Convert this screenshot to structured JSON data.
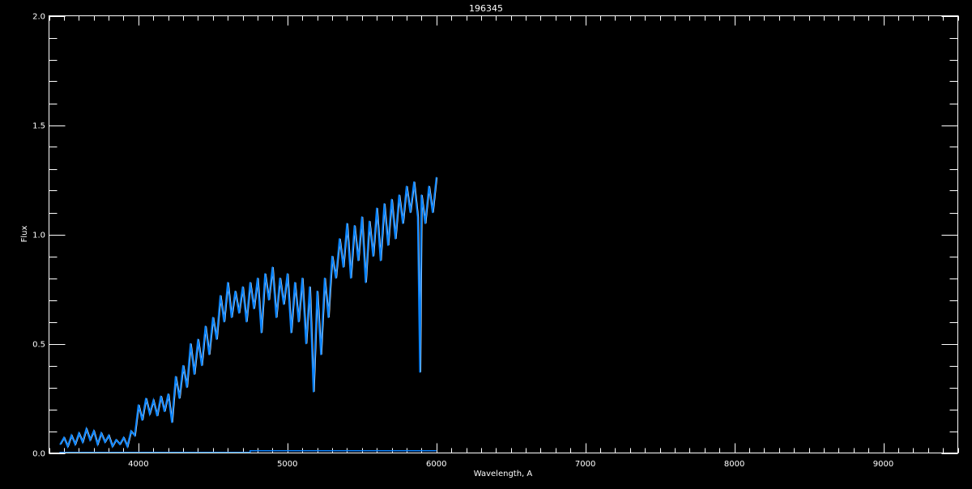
{
  "chart_data": {
    "type": "line",
    "title": "196345",
    "xlabel": "Wavelength, A",
    "ylabel": "Flux",
    "xlim": [
      3400,
      9500
    ],
    "ylim": [
      0.0,
      2.0
    ],
    "x_ticks": [
      4000,
      5000,
      6000,
      7000,
      8000,
      9000
    ],
    "x_tick_labels": [
      "4000",
      "5000",
      "6000",
      "7000",
      "8000",
      "9000"
    ],
    "x_minor_step": 100,
    "y_ticks": [
      0.0,
      0.5,
      1.0,
      1.5,
      2.0
    ],
    "y_tick_labels": [
      "0.0",
      "0.5",
      "1.0",
      "1.5",
      "2.0"
    ],
    "y_minor_step": 0.1,
    "grid": false,
    "colors": {
      "background": "#000000",
      "axes": "#ffffff",
      "spectrum": "#0a84ff",
      "underlay": "#ffffff"
    },
    "series": [
      {
        "color": "#0a84ff",
        "x": [
          3475,
          3500,
          3525,
          3550,
          3575,
          3600,
          3625,
          3650,
          3675,
          3700,
          3725,
          3750,
          3775,
          3800,
          3825,
          3850,
          3875,
          3900,
          3925,
          3950,
          3975,
          4000,
          4025,
          4050,
          4075,
          4100,
          4125,
          4150,
          4175,
          4200,
          4225,
          4250,
          4275,
          4300,
          4325,
          4350,
          4375,
          4400,
          4425,
          4450,
          4475,
          4500,
          4525,
          4550,
          4575,
          4600,
          4625,
          4650,
          4675,
          4700,
          4725,
          4750,
          4775,
          4800,
          4825,
          4850,
          4875,
          4900,
          4925,
          4950,
          4975,
          5000,
          5025,
          5050,
          5075,
          5100,
          5125,
          5150,
          5175,
          5200,
          5225,
          5250,
          5275,
          5300,
          5325,
          5350,
          5375,
          5400,
          5425,
          5450,
          5475,
          5500,
          5525,
          5550,
          5575,
          5600,
          5625,
          5650,
          5675,
          5700,
          5725,
          5750,
          5775,
          5800,
          5825,
          5850,
          5875,
          5890,
          5900,
          5925,
          5950,
          5975,
          6000
        ],
        "y": [
          0.04,
          0.07,
          0.03,
          0.08,
          0.04,
          0.09,
          0.05,
          0.11,
          0.06,
          0.1,
          0.04,
          0.09,
          0.05,
          0.08,
          0.03,
          0.06,
          0.04,
          0.07,
          0.03,
          0.1,
          0.08,
          0.22,
          0.15,
          0.25,
          0.18,
          0.24,
          0.17,
          0.26,
          0.19,
          0.27,
          0.14,
          0.35,
          0.25,
          0.4,
          0.3,
          0.5,
          0.36,
          0.52,
          0.4,
          0.58,
          0.45,
          0.62,
          0.52,
          0.72,
          0.6,
          0.78,
          0.62,
          0.74,
          0.64,
          0.76,
          0.6,
          0.78,
          0.66,
          0.8,
          0.55,
          0.82,
          0.7,
          0.85,
          0.62,
          0.8,
          0.68,
          0.82,
          0.55,
          0.78,
          0.6,
          0.8,
          0.5,
          0.76,
          0.28,
          0.74,
          0.45,
          0.8,
          0.62,
          0.9,
          0.8,
          0.98,
          0.85,
          1.05,
          0.8,
          1.04,
          0.88,
          1.08,
          0.78,
          1.06,
          0.9,
          1.12,
          0.88,
          1.14,
          0.95,
          1.16,
          0.98,
          1.18,
          1.05,
          1.22,
          1.1,
          1.24,
          1.08,
          0.37,
          1.18,
          1.05,
          1.22,
          1.1,
          1.26
        ]
      },
      {
        "color": "#0a84ff",
        "x": [
          3470,
          4750,
          4750,
          6000
        ],
        "y": [
          0.003,
          0.003,
          0.01,
          0.01
        ]
      }
    ]
  }
}
